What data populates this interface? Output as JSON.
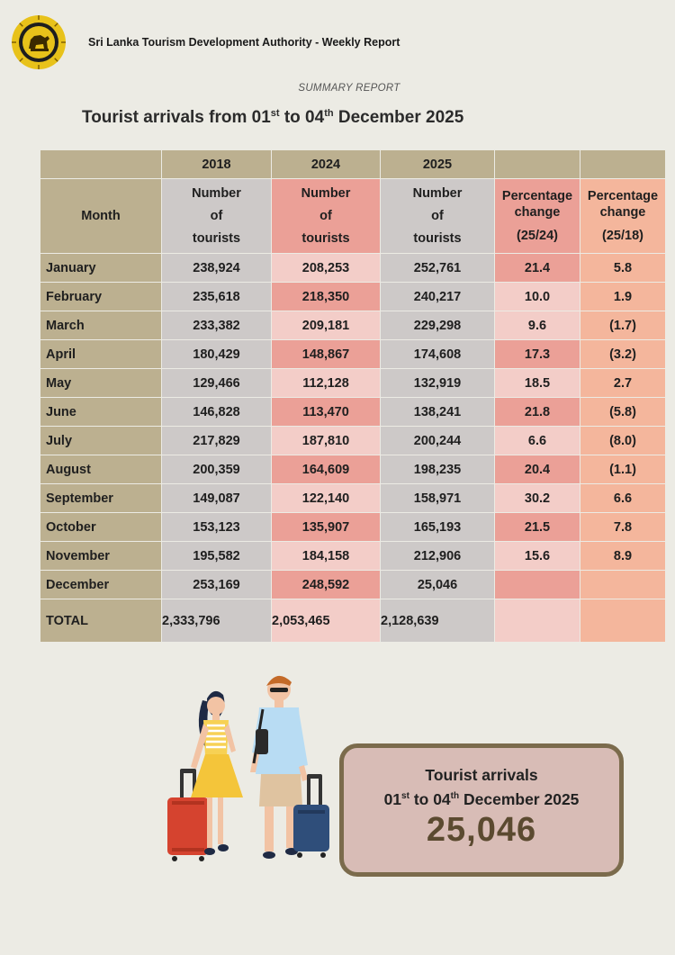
{
  "header": {
    "org": "Sri Lanka Tourism Development Authority - Weekly Report",
    "subtitle": "SUMMARY REPORT",
    "title_pre": "Tourist arrivals from 01",
    "title_sup1": "st",
    "title_mid": " to 04",
    "title_sup2": "th",
    "title_post": " December 2025"
  },
  "table": {
    "years": [
      "2018",
      "2024",
      "2025"
    ],
    "month_header": "Month",
    "num_header": [
      "Number",
      "of",
      "tourists"
    ],
    "pct_header": {
      "line1": "Percentage",
      "line2": "change",
      "a": "(25/24)",
      "b": "(25/18)"
    },
    "rows": [
      {
        "month": "January",
        "y2018": "238,924",
        "y2024": "208,253",
        "y2025": "252,761",
        "p1": "21.4",
        "p2": "5.8"
      },
      {
        "month": "February",
        "y2018": "235,618",
        "y2024": "218,350",
        "y2025": "240,217",
        "p1": "10.0",
        "p2": "1.9"
      },
      {
        "month": "March",
        "y2018": "233,382",
        "y2024": "209,181",
        "y2025": "229,298",
        "p1": "9.6",
        "p2": "(1.7)"
      },
      {
        "month": "April",
        "y2018": "180,429",
        "y2024": "148,867",
        "y2025": "174,608",
        "p1": "17.3",
        "p2": "(3.2)"
      },
      {
        "month": "May",
        "y2018": "129,466",
        "y2024": "112,128",
        "y2025": "132,919",
        "p1": "18.5",
        "p2": "2.7"
      },
      {
        "month": "June",
        "y2018": "146,828",
        "y2024": "113,470",
        "y2025": "138,241",
        "p1": "21.8",
        "p2": "(5.8)"
      },
      {
        "month": "July",
        "y2018": "217,829",
        "y2024": "187,810",
        "y2025": "200,244",
        "p1": "6.6",
        "p2": "(8.0)"
      },
      {
        "month": "August",
        "y2018": "200,359",
        "y2024": "164,609",
        "y2025": "198,235",
        "p1": "20.4",
        "p2": "(1.1)"
      },
      {
        "month": "September",
        "y2018": "149,087",
        "y2024": "122,140",
        "y2025": "158,971",
        "p1": "30.2",
        "p2": "6.6"
      },
      {
        "month": "October",
        "y2018": "153,123",
        "y2024": "135,907",
        "y2025": "165,193",
        "p1": "21.5",
        "p2": "7.8"
      },
      {
        "month": "November",
        "y2018": "195,582",
        "y2024": "184,158",
        "y2025": "212,906",
        "p1": "15.6",
        "p2": "8.9"
      },
      {
        "month": "December",
        "y2018": "253,169",
        "y2024": "248,592",
        "y2025": "25,046",
        "p1": "",
        "p2": ""
      }
    ],
    "total": {
      "label": "TOTAL",
      "y2018": "2,333,796",
      "y2024": "2,053,465",
      "y2025": "2,128,639"
    }
  },
  "summary_box": {
    "line1": "Tourist arrivals",
    "l2_pre": "01",
    "l2_sup1": "st",
    "l2_mid": " to 04",
    "l2_sup2": "th",
    "l2_post": " December 2025",
    "value": "25,046"
  },
  "colors": {
    "background": "#ecebe4",
    "khaki": "#bcb090",
    "grey": "#cdc9c8",
    "pink_light": "#f3cdc8",
    "pink_dark": "#eba097",
    "orange": "#f4b69c",
    "total_blue": "#1c2a68",
    "box_border": "#7b6b4c"
  },
  "icons": [
    "sri-lanka-lion-emblem-icon",
    "travelers-illustration"
  ]
}
